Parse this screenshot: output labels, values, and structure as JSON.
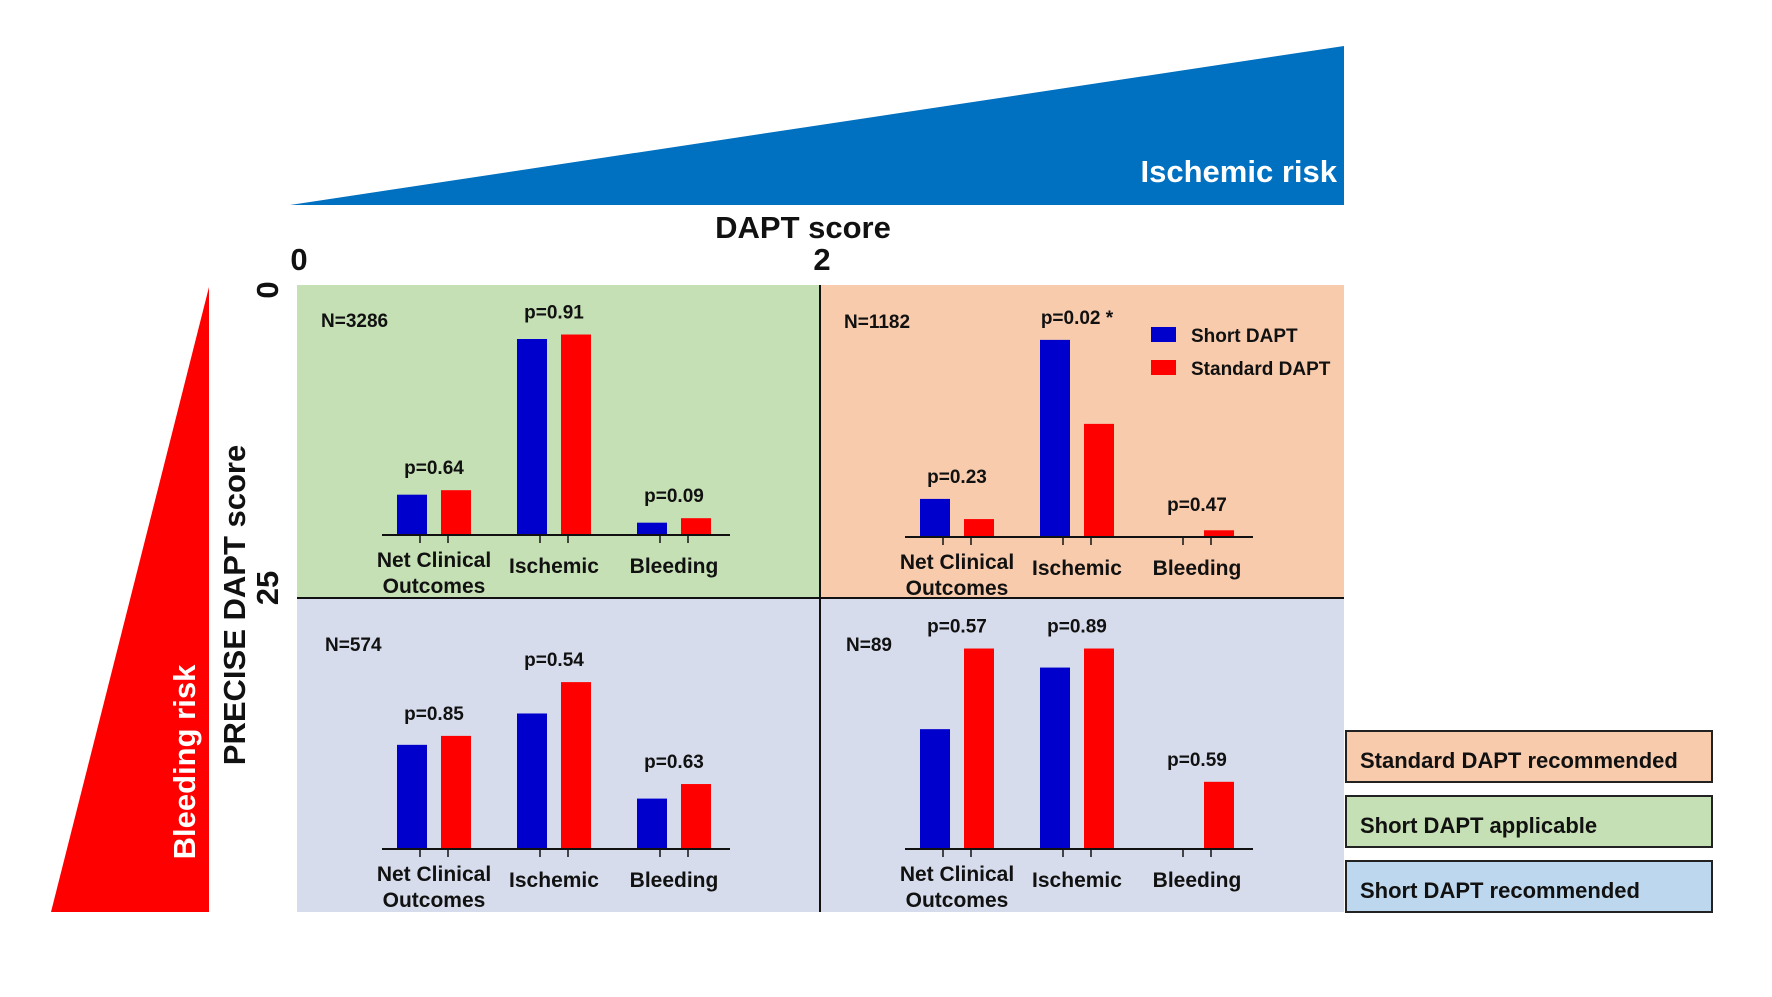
{
  "header": {
    "ischemic_risk_label": "Ischemic risk",
    "bleeding_risk_label": "Bleeding risk",
    "x_axis_title": "DAPT score",
    "x_ticks": [
      "0",
      "2"
    ],
    "y_axis_title": "PRECISE DAPT score",
    "y_ticks": [
      "0",
      "25"
    ],
    "ischemic_color": "#0070C0",
    "bleeding_color": "#FF0000"
  },
  "legend": {
    "items": [
      {
        "label": "Short DAPT",
        "color": "#0000CC"
      },
      {
        "label": "Standard DAPT",
        "color": "#FF0000"
      }
    ]
  },
  "recommendations": [
    {
      "label": "Standard DAPT recommended",
      "color": "#F8CBAD"
    },
    {
      "label": "Short DAPT applicable",
      "color": "#C5E0B4"
    },
    {
      "label": "Short DAPT recommended",
      "color": "#BDD7EE"
    }
  ],
  "chart_data": [
    {
      "type": "bar",
      "panel": "top-left",
      "n_label": "N=3286",
      "background": "#C5E0B4",
      "categories": [
        "Net Clinical Outcomes",
        "Ischemic",
        "Bleeding"
      ],
      "category_lines": [
        [
          "Net Clinical",
          "Outcomes"
        ],
        [
          "Ischemic"
        ],
        [
          "Bleeding"
        ]
      ],
      "p_values": [
        "p=0.64",
        "p=0.91",
        "p=0.09"
      ],
      "series": [
        {
          "name": "Short DAPT",
          "values": [
            3.6,
            17.5,
            1.1
          ]
        },
        {
          "name": "Standard DAPT",
          "values": [
            4.0,
            17.9,
            1.5
          ]
        }
      ]
    },
    {
      "type": "bar",
      "panel": "top-right",
      "n_label": "N=1182",
      "background": "#F8CBAD",
      "categories": [
        "Net Clinical Outcomes",
        "Ischemic",
        "Bleeding"
      ],
      "category_lines": [
        [
          "Net Clinical",
          "Outcomes"
        ],
        [
          "Ischemic"
        ],
        [
          "Bleeding"
        ]
      ],
      "p_values": [
        "p=0.23",
        "p=0.02 *",
        "p=0.47"
      ],
      "series": [
        {
          "name": "Short DAPT",
          "values": [
            3.4,
            17.6,
            0.0
          ]
        },
        {
          "name": "Standard DAPT",
          "values": [
            1.6,
            10.1,
            0.6
          ]
        }
      ]
    },
    {
      "type": "bar",
      "panel": "bottom-left",
      "n_label": "N=574",
      "background": "#D6DCEC",
      "categories": [
        "Net Clinical Outcomes",
        "Ischemic",
        "Bleeding"
      ],
      "category_lines": [
        [
          "Net Clinical",
          "Outcomes"
        ],
        [
          "Ischemic"
        ],
        [
          "Bleeding"
        ]
      ],
      "p_values": [
        "p=0.85",
        "p=0.54",
        "p=0.63"
      ],
      "series": [
        {
          "name": "Short DAPT",
          "values": [
            9.3,
            12.1,
            4.5
          ]
        },
        {
          "name": "Standard DAPT",
          "values": [
            10.1,
            14.9,
            5.8
          ]
        }
      ]
    },
    {
      "type": "bar",
      "panel": "bottom-right",
      "n_label": "N=89",
      "background": "#D6DCEC",
      "categories": [
        "Net Clinical Outcomes",
        "Ischemic",
        "Bleeding"
      ],
      "category_lines": [
        [
          "Net Clinical",
          "Outcomes"
        ],
        [
          "Ischemic"
        ],
        [
          "Bleeding"
        ]
      ],
      "p_values": [
        "p=0.57",
        "p=0.89",
        "p=0.59"
      ],
      "series": [
        {
          "name": "Short DAPT",
          "values": [
            10.7,
            16.2,
            0.0
          ]
        },
        {
          "name": "Standard DAPT",
          "values": [
            17.9,
            17.9,
            6.0
          ]
        }
      ]
    }
  ]
}
